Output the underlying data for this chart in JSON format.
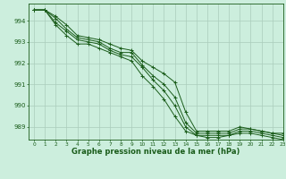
{
  "title": "Graphe pression niveau de la mer (hPa)",
  "bg_color": "#cceedd",
  "grid_color": "#aaccbb",
  "line_color": "#1a5c1a",
  "xlim": [
    -0.5,
    23
  ],
  "ylim": [
    988.4,
    994.8
  ],
  "yticks": [
    989,
    990,
    991,
    992,
    993,
    994
  ],
  "xticks": [
    0,
    1,
    2,
    3,
    4,
    5,
    6,
    7,
    8,
    9,
    10,
    11,
    12,
    13,
    14,
    15,
    16,
    17,
    18,
    19,
    20,
    21,
    22,
    23
  ],
  "series": [
    [
      994.5,
      994.5,
      994.2,
      993.8,
      993.3,
      993.2,
      993.1,
      992.9,
      992.7,
      992.6,
      992.1,
      991.8,
      991.5,
      991.1,
      989.7,
      988.8,
      988.8,
      988.8,
      988.8,
      989.0,
      988.9,
      988.8,
      988.7,
      988.7
    ],
    [
      994.5,
      994.5,
      994.1,
      993.6,
      993.2,
      993.1,
      993.0,
      992.7,
      992.5,
      992.5,
      991.9,
      991.4,
      991.0,
      990.4,
      989.2,
      988.7,
      988.7,
      988.7,
      988.7,
      988.9,
      988.9,
      988.8,
      988.7,
      988.6
    ],
    [
      994.5,
      994.5,
      993.9,
      993.5,
      993.1,
      993.0,
      992.9,
      992.6,
      992.4,
      992.3,
      991.8,
      991.2,
      990.7,
      990.0,
      989.0,
      988.6,
      988.6,
      988.6,
      988.6,
      988.8,
      988.8,
      988.7,
      988.6,
      988.5
    ],
    [
      994.5,
      994.5,
      993.8,
      993.3,
      992.9,
      992.9,
      992.7,
      992.5,
      992.3,
      992.1,
      991.4,
      990.9,
      990.3,
      989.5,
      988.8,
      988.6,
      988.5,
      988.5,
      988.6,
      988.7,
      988.7,
      988.6,
      988.5,
      988.4
    ]
  ]
}
